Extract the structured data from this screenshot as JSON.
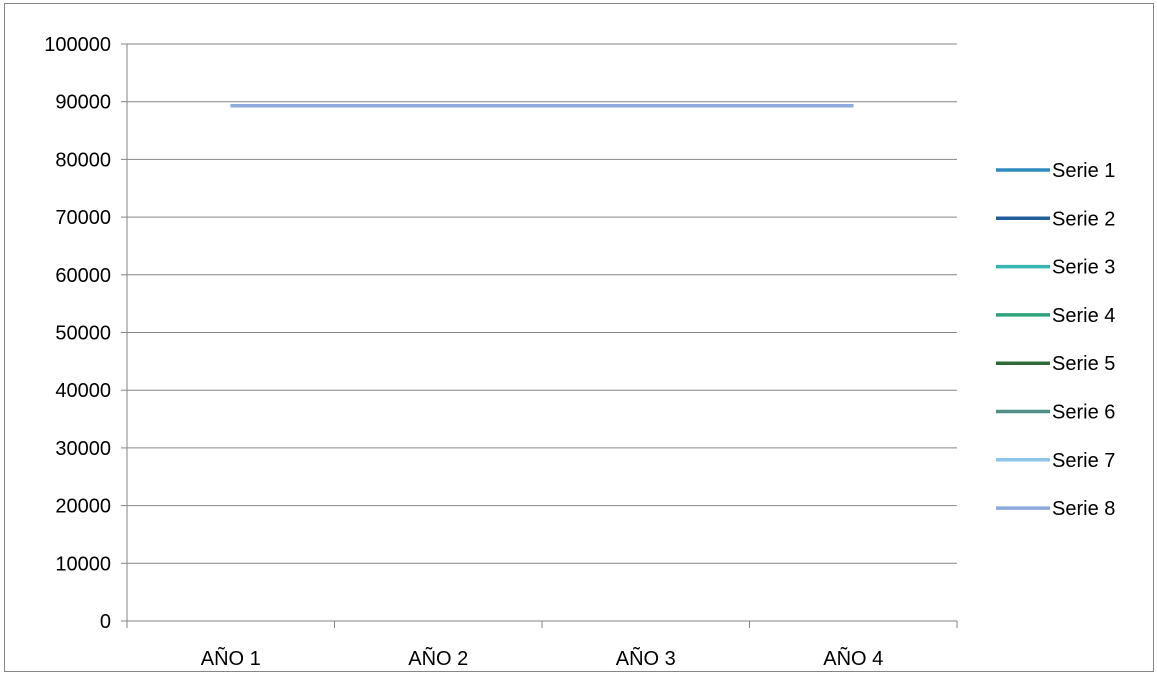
{
  "chart_data": {
    "type": "line",
    "title": "",
    "xlabel": "",
    "ylabel": "",
    "categories": [
      "AÑO 1",
      "AÑO 2",
      "AÑO 3",
      "AÑO 4"
    ],
    "ylim": [
      0,
      100000
    ],
    "y_ticks": [
      "0",
      "10000",
      "20000",
      "30000",
      "40000",
      "50000",
      "60000",
      "70000",
      "80000",
      "90000",
      "100000"
    ],
    "grid": true,
    "legend_position": "right",
    "series": [
      {
        "name": "Serie 1",
        "color": "#2E8BC0",
        "values": [
          89300,
          89300,
          89300,
          89300
        ]
      },
      {
        "name": "Serie 2",
        "color": "#1F5F9A",
        "values": [
          89300,
          89300,
          89300,
          89300
        ]
      },
      {
        "name": "Serie 3",
        "color": "#36B5B0",
        "values": [
          89300,
          89300,
          89300,
          89300
        ]
      },
      {
        "name": "Serie 4",
        "color": "#2FA37A",
        "values": [
          89300,
          89300,
          89300,
          89300
        ]
      },
      {
        "name": "Serie 5",
        "color": "#2E6B38",
        "values": [
          89300,
          89300,
          89300,
          89300
        ]
      },
      {
        "name": "Serie 6",
        "color": "#4F8F86",
        "values": [
          89300,
          89300,
          89300,
          89300
        ]
      },
      {
        "name": "Serie 7",
        "color": "#8EC6E8",
        "values": [
          89300,
          89300,
          89300,
          89300
        ]
      },
      {
        "name": "Serie 8",
        "color": "#8FAADC",
        "values": [
          89300,
          89300,
          89300,
          89300
        ]
      }
    ]
  }
}
